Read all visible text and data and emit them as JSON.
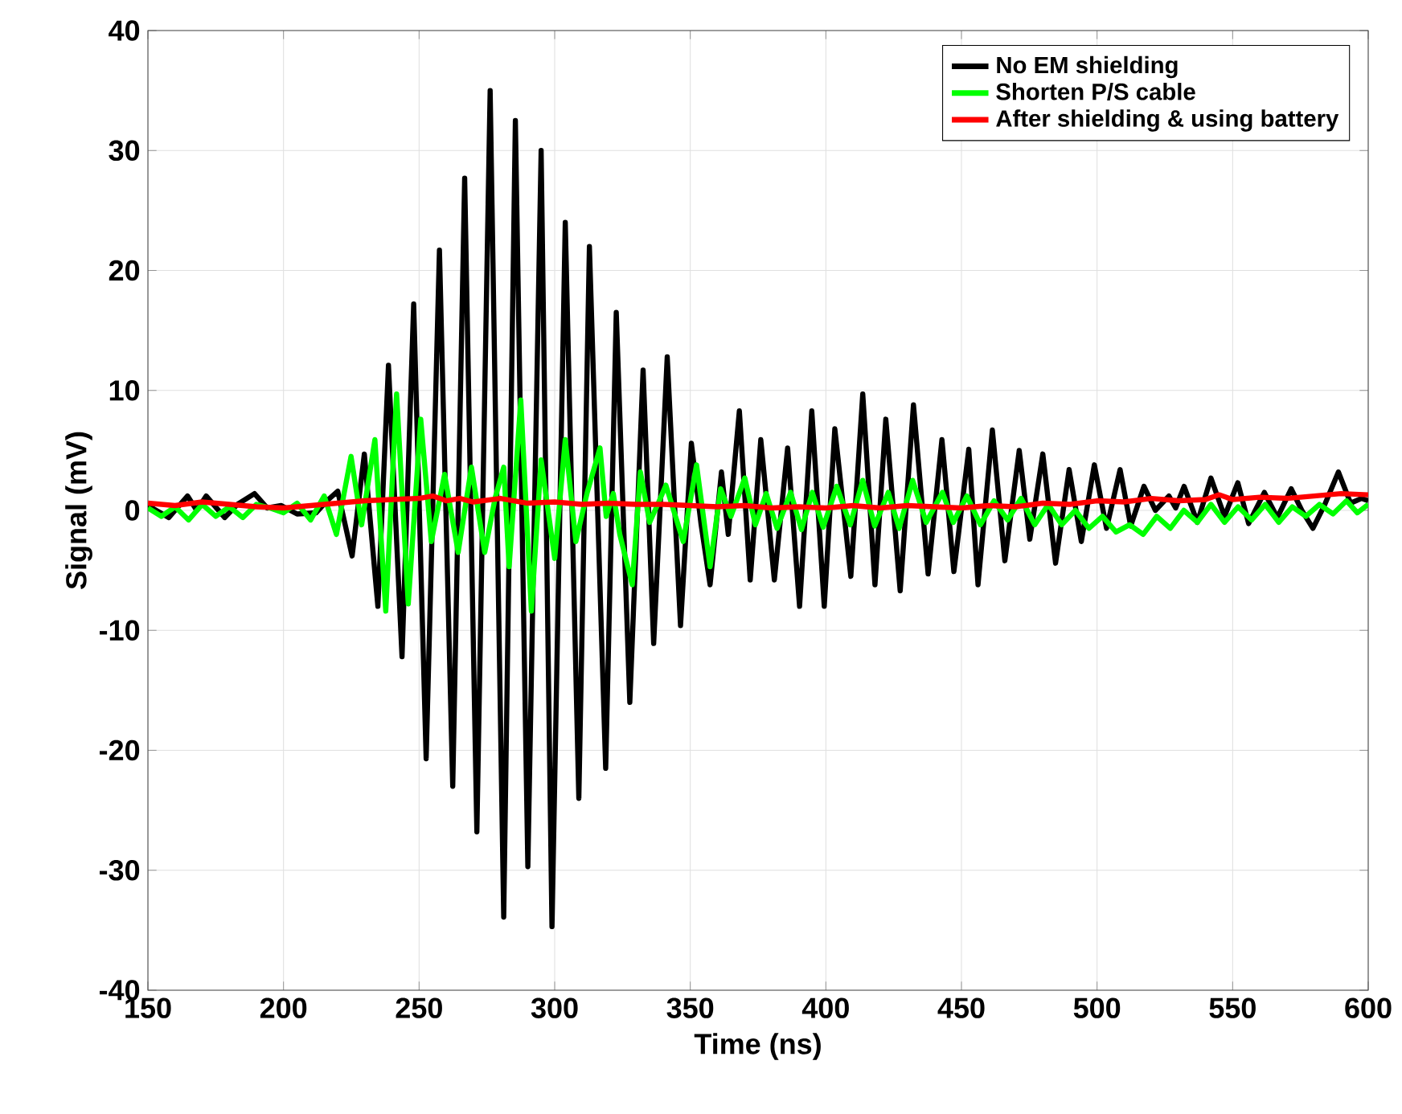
{
  "chart_data": {
    "type": "line",
    "xlabel": "Time (ns)",
    "ylabel": "Signal (mV)",
    "xlim": [
      150,
      600
    ],
    "ylim": [
      -40,
      40
    ],
    "xticks": [
      150,
      200,
      250,
      300,
      350,
      400,
      450,
      500,
      550,
      600
    ],
    "yticks": [
      -40,
      -30,
      -20,
      -10,
      0,
      10,
      20,
      30,
      40
    ],
    "grid": true,
    "legend": "top right",
    "series": [
      {
        "name": "No EM shielding",
        "color": "#000000",
        "x": [
          150,
          157.7,
          164.6,
          168,
          171.5,
          178.3,
          183,
          189.3,
          194,
          199.2,
          205,
          212,
          216,
          220,
          225.3,
          229.8,
          234.8,
          238.7,
          243.7,
          248,
          252.6,
          257.5,
          262.4,
          266.8,
          271.3,
          276.2,
          281.2,
          285.5,
          290.1,
          295,
          299,
          303.9,
          308.9,
          312.8,
          318.8,
          322.7,
          327.7,
          332.6,
          336.5,
          341.5,
          346.4,
          350.4,
          354,
          357.3,
          361.5,
          364,
          368.1,
          372.1,
          376,
          381,
          385.9,
          390.3,
          394.8,
          399.4,
          403.3,
          409.2,
          413.6,
          418.1,
          422.1,
          427.4,
          432.3,
          437.7,
          442.8,
          447.2,
          452.7,
          456.1,
          461.4,
          466,
          471.3,
          475.2,
          480,
          484.7,
          489.7,
          494.2,
          499,
          503.5,
          508.5,
          512.4,
          517.3,
          521.5,
          526.5,
          529,
          532.1,
          537,
          542,
          547,
          551.9,
          555.9,
          561.7,
          566.5,
          571.6,
          575.5,
          579.6,
          584,
          589,
          593.5,
          597.5,
          600
        ],
        "values": [
          0.4,
          -0.6,
          1.2,
          0,
          1.2,
          -0.6,
          0.5,
          1.4,
          0.2,
          0.4,
          -0.3,
          -0.2,
          0.8,
          1.6,
          -3.8,
          4.7,
          -8,
          12.1,
          -12.2,
          17.2,
          -20.7,
          21.7,
          -23,
          27.7,
          -26.8,
          35,
          -33.9,
          32.5,
          -29.7,
          30,
          -34.7,
          24,
          -24,
          22,
          -21.5,
          16.5,
          -16,
          11.7,
          -11.1,
          12.8,
          -9.6,
          5.6,
          -1.2,
          -6.2,
          3.2,
          -2,
          8.3,
          -5.8,
          5.9,
          -5.8,
          5.2,
          -8,
          8.3,
          -8,
          6.8,
          -5.5,
          9.7,
          -6.2,
          7.6,
          -6.7,
          8.8,
          -5.3,
          5.9,
          -5.1,
          5.1,
          -6.2,
          6.7,
          -4.2,
          5,
          -2.4,
          4.7,
          -4.4,
          3.4,
          -2.6,
          3.8,
          -1.5,
          3.4,
          -1.3,
          2,
          0,
          1.2,
          0.2,
          2,
          -1,
          2.7,
          -0.5,
          2.3,
          -1.1,
          1.5,
          -0.6,
          1.8,
          0,
          -1.5,
          0.5,
          3.2,
          0.6,
          1,
          0.8
        ]
      },
      {
        "name": "Shorten P/S cable",
        "color": "#00ff00",
        "x": [
          150,
          155,
          160,
          165,
          170,
          175,
          180,
          185,
          190,
          195,
          200,
          205,
          210,
          215,
          219.5,
          224.9,
          228.8,
          233.7,
          237.7,
          241.7,
          246,
          250.6,
          254.5,
          259.4,
          264.4,
          269.3,
          274.2,
          278,
          281.2,
          283.2,
          287.5,
          291.4,
          295,
          300,
          303.9,
          307.8,
          312,
          316.7,
          319,
          321.6,
          324,
          328.6,
          331.6,
          335,
          338,
          341,
          347.4,
          352.3,
          357.3,
          361.2,
          365,
          370.1,
          374,
          378,
          382,
          387,
          391,
          395,
          399,
          404,
          409,
          413.6,
          418,
          423,
          427,
          432,
          437,
          443,
          447,
          452,
          457,
          462,
          467,
          472,
          477,
          482,
          487,
          492,
          497,
          502,
          507,
          512,
          517,
          522,
          527,
          532,
          537,
          542,
          547,
          552,
          557,
          562,
          567,
          572,
          577,
          582,
          587,
          592,
          596,
          600
        ],
        "values": [
          0.2,
          -0.5,
          0.3,
          -0.8,
          0.5,
          -0.5,
          0.3,
          -0.6,
          0.5,
          0.2,
          -0.2,
          0.6,
          -0.8,
          1.2,
          -2,
          4.5,
          -1.2,
          5.9,
          -8.4,
          9.7,
          -7.8,
          7.6,
          -2.6,
          3,
          -3.5,
          3.6,
          -3.5,
          1,
          3.6,
          -4.7,
          9.2,
          -8.4,
          4.2,
          -4,
          5.9,
          -2.6,
          1.5,
          5.2,
          -0.5,
          1.4,
          -2,
          -6.2,
          3.2,
          -1,
          0.5,
          2.1,
          -2.6,
          3.8,
          -4.7,
          1.8,
          -0.5,
          2.7,
          -1.2,
          1.4,
          -1.5,
          1.5,
          -1.6,
          1.5,
          -1.4,
          2,
          -1.2,
          2.5,
          -1.3,
          1.5,
          -1.5,
          2.5,
          -1,
          1.5,
          -1,
          1.2,
          -1.2,
          0.8,
          -0.8,
          1,
          -1.2,
          0.5,
          -1.2,
          0,
          -1.5,
          -0.5,
          -1.8,
          -1.2,
          -2,
          -0.5,
          -1.5,
          0,
          -1,
          0.5,
          -1,
          0.3,
          -0.8,
          0.5,
          -1,
          0.3,
          -0.5,
          0.5,
          -0.3,
          0.8,
          -0.2,
          0.5
        ]
      },
      {
        "name": "After shielding & using battery",
        "color": "#ff0000",
        "x": [
          150,
          160,
          170,
          180,
          190,
          200,
          210,
          220,
          230,
          240,
          250,
          255,
          260,
          265,
          270,
          280,
          290,
          300,
          310,
          320,
          330,
          340,
          350,
          360,
          370,
          380,
          390,
          400,
          410,
          420,
          430,
          440,
          450,
          460,
          470,
          480,
          490,
          500,
          510,
          520,
          530,
          540,
          545,
          550,
          560,
          570,
          580,
          590,
          600
        ],
        "values": [
          0.6,
          0.4,
          0.7,
          0.5,
          0.3,
          0.2,
          0.4,
          0.6,
          0.8,
          0.9,
          1.0,
          1.2,
          0.8,
          1.0,
          0.7,
          1.0,
          0.6,
          0.7,
          0.5,
          0.6,
          0.5,
          0.5,
          0.4,
          0.3,
          0.4,
          0.2,
          0.3,
          0.2,
          0.4,
          0.2,
          0.4,
          0.3,
          0.2,
          0.4,
          0.3,
          0.6,
          0.5,
          0.8,
          0.7,
          1.0,
          0.8,
          0.9,
          1.3,
          0.9,
          1.1,
          1.0,
          1.2,
          1.4,
          1.3
        ]
      }
    ]
  }
}
